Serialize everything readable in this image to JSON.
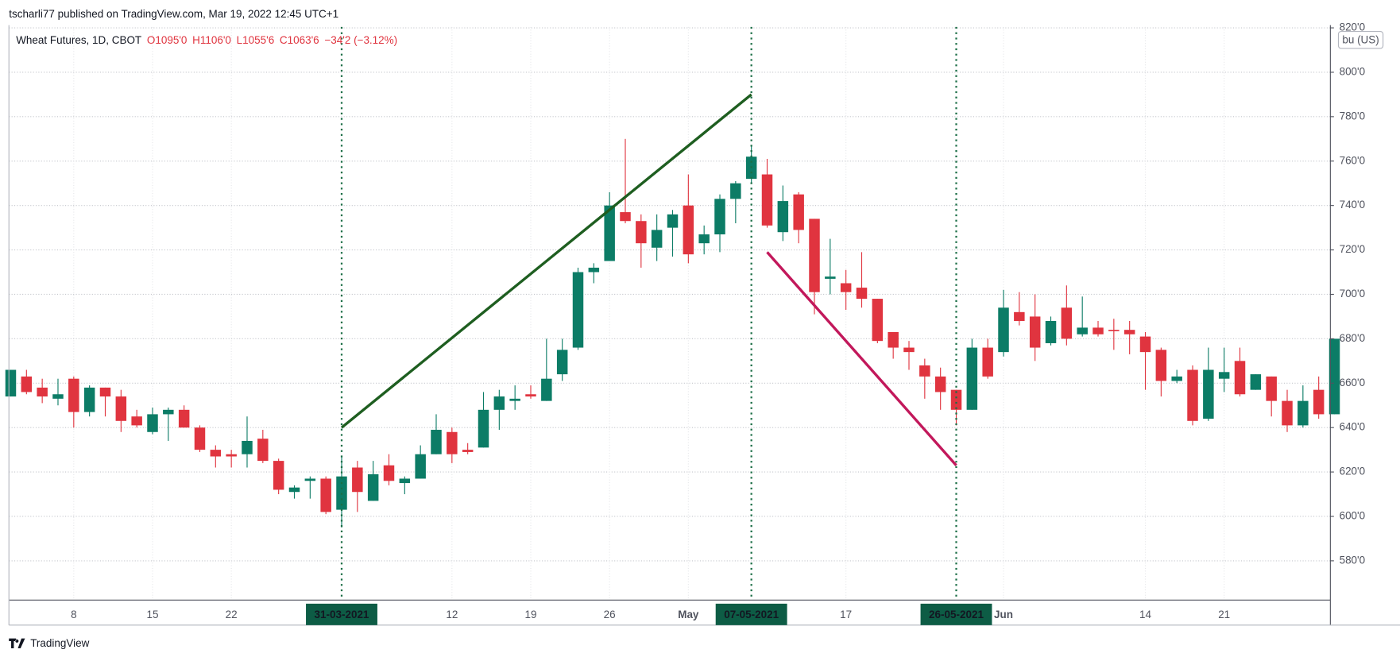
{
  "header": "tscharli77 published on TradingView.com, Mar 19, 2022 12:45 UTC+1",
  "brand": "TradingView",
  "chart_data": {
    "type": "candlestick",
    "title": "Wheat Futures, 1D, CBOT",
    "legend": {
      "open": "O1095'0",
      "high": "H1106'0",
      "low": "L1055'6",
      "close": "C1063'6",
      "change": "−34'2 (−3.12%)"
    },
    "unit_label": "bu (US)",
    "up_color": "#0c7c66",
    "down_color": "#e0343f",
    "categories": [
      null,
      null,
      null,
      null,
      "8",
      null,
      null,
      null,
      null,
      "15",
      null,
      null,
      null,
      null,
      "22",
      null,
      null,
      null,
      null,
      null,
      null,
      "31-03-2021",
      null,
      null,
      null,
      null,
      null,
      null,
      "12",
      null,
      null,
      null,
      null,
      "19",
      null,
      null,
      null,
      null,
      "26",
      null,
      null,
      null,
      null,
      "May",
      null,
      null,
      null,
      "07-05-2021",
      null,
      null,
      null,
      null,
      null,
      "17",
      null,
      null,
      null,
      null,
      null,
      null,
      "26-05-2021",
      null,
      null,
      "Jun",
      null,
      null,
      null,
      null,
      null,
      null,
      null,
      null,
      "14",
      null,
      null,
      null,
      null,
      "21",
      null,
      null,
      null,
      null,
      null,
      null,
      null
    ],
    "open": [
      654,
      663,
      658,
      653,
      662,
      647,
      658,
      654,
      645,
      638,
      646,
      648,
      640,
      630,
      628,
      628,
      635,
      625,
      611,
      616,
      617,
      603,
      622,
      607,
      623,
      615,
      617,
      628,
      638,
      630,
      631,
      648,
      652,
      655,
      652,
      664,
      676,
      710,
      715,
      737,
      733,
      721,
      730,
      740,
      723,
      727,
      743,
      752,
      754,
      728,
      745,
      734,
      707,
      705,
      703,
      698,
      683,
      676,
      668,
      663,
      657,
      648,
      676,
      674,
      692,
      690,
      678,
      694,
      682,
      685,
      684,
      684,
      681,
      675,
      661,
      666,
      644,
      662,
      670,
      657,
      663,
      652,
      641,
      657,
      646
    ],
    "high": [
      666,
      666,
      662,
      662,
      663,
      659,
      658,
      657,
      648,
      649,
      649,
      650,
      641,
      632,
      630,
      645,
      639,
      626,
      614,
      618,
      618,
      627,
      625,
      625,
      628,
      618,
      632,
      646,
      640,
      633,
      656,
      657,
      659,
      659,
      680,
      680,
      712,
      714,
      746,
      770,
      736,
      736,
      738,
      754,
      731,
      745,
      751,
      767,
      761,
      749,
      746,
      734,
      725,
      711,
      719,
      698,
      683,
      679,
      671,
      667,
      657,
      680,
      680,
      702,
      701,
      700,
      690,
      704,
      699,
      688,
      689,
      688,
      683,
      676,
      666,
      668,
      676,
      676,
      676,
      664,
      663,
      657,
      659,
      663,
      680
    ],
    "low": [
      654,
      655,
      651,
      650,
      640,
      645,
      645,
      638,
      640,
      637,
      634,
      640,
      629,
      622,
      622,
      622,
      624,
      610,
      608,
      608,
      601,
      595,
      602,
      607,
      614,
      610,
      617,
      628,
      624,
      628,
      631,
      639,
      648,
      653,
      652,
      661,
      675,
      705,
      715,
      732,
      712,
      715,
      717,
      714,
      718,
      719,
      732,
      750,
      730,
      724,
      723,
      691,
      700,
      693,
      694,
      678,
      671,
      666,
      653,
      648,
      641,
      648,
      662,
      672,
      686,
      670,
      677,
      677,
      681,
      681,
      675,
      673,
      657,
      654,
      660,
      641,
      643,
      656,
      654,
      657,
      645,
      638,
      640,
      644,
      646
    ],
    "close": [
      666,
      656,
      654,
      655,
      647,
      658,
      654,
      643,
      641,
      646,
      648,
      640,
      630,
      627,
      627,
      634,
      625,
      612,
      613,
      617,
      602,
      618,
      611,
      619,
      616,
      617,
      628,
      639,
      628,
      629,
      648,
      654,
      653,
      654,
      662,
      675,
      710,
      712,
      740,
      733,
      723,
      729,
      736,
      718,
      727,
      743,
      750,
      762,
      731,
      742,
      729,
      701,
      708,
      701,
      698,
      679,
      676,
      674,
      663,
      656,
      648,
      676,
      663,
      694,
      688,
      676,
      688,
      680,
      685,
      682,
      684,
      682,
      674,
      661,
      663,
      643,
      666,
      665,
      655,
      664,
      652,
      641,
      652,
      646,
      680
    ],
    "trend_lines": [
      {
        "color": "#1e5e20",
        "x": [
          21,
          47
        ],
        "values": [
          640,
          790
        ]
      },
      {
        "color": "#c2185b",
        "x": [
          48,
          60
        ],
        "values": [
          719,
          623
        ]
      }
    ],
    "ylim": [
      562.3,
      820.4
    ],
    "yticks": [
      {
        "value": 580,
        "label": "580'0"
      },
      {
        "value": 600,
        "label": "600'0"
      },
      {
        "value": 620,
        "label": "620'0"
      },
      {
        "value": 640,
        "label": "640'0"
      },
      {
        "value": 660,
        "label": "660'0"
      },
      {
        "value": 680,
        "label": "680'0"
      },
      {
        "value": 700,
        "label": "700'0"
      },
      {
        "value": 720,
        "label": "720'0"
      },
      {
        "value": 740,
        "label": "740'0"
      },
      {
        "value": 760,
        "label": "760'0"
      },
      {
        "value": 780,
        "label": "780'0"
      },
      {
        "value": 800,
        "label": "800'0"
      },
      {
        "value": 820,
        "label": "820'0"
      }
    ],
    "grid": true
  }
}
